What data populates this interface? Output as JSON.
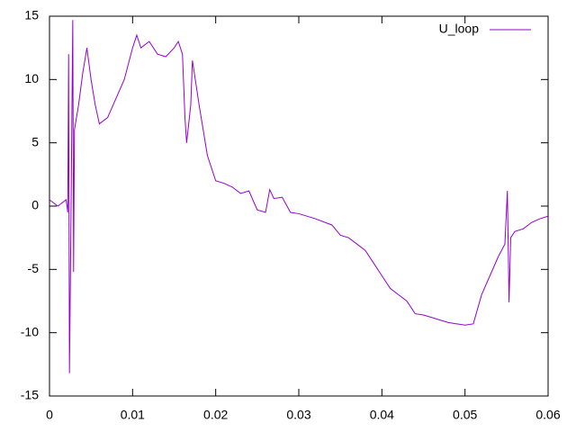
{
  "chart_data": {
    "type": "line",
    "x": [
      0,
      0.001,
      0.002,
      0.0022,
      0.0023,
      0.0024,
      0.0026,
      0.0028,
      0.0029,
      0.003,
      0.0035,
      0.004,
      0.0045,
      0.005,
      0.0055,
      0.006,
      0.007,
      0.008,
      0.009,
      0.01,
      0.0105,
      0.011,
      0.012,
      0.013,
      0.014,
      0.015,
      0.0155,
      0.016,
      0.0163,
      0.0165,
      0.017,
      0.0172,
      0.018,
      0.019,
      0.02,
      0.021,
      0.022,
      0.023,
      0.024,
      0.025,
      0.026,
      0.0265,
      0.027,
      0.028,
      0.029,
      0.03,
      0.032,
      0.034,
      0.035,
      0.036,
      0.037,
      0.038,
      0.039,
      0.04,
      0.041,
      0.042,
      0.043,
      0.044,
      0.045,
      0.046,
      0.047,
      0.048,
      0.049,
      0.05,
      0.051,
      0.052,
      0.053,
      0.054,
      0.0548,
      0.0551,
      0.0553,
      0.0555,
      0.056,
      0.057,
      0.058,
      0.059,
      0.06
    ],
    "series": [
      {
        "name": "U_loop",
        "color": "#9400d3",
        "values": [
          0.5,
          0,
          0.5,
          -0.5,
          12,
          -13.2,
          0,
          14.7,
          -5.2,
          6,
          8,
          10.5,
          12.5,
          10,
          8,
          6.5,
          7,
          8.5,
          10,
          12.5,
          13.5,
          12.5,
          13,
          12,
          11.8,
          12.5,
          13,
          12,
          7,
          5,
          8,
          11.5,
          8,
          4,
          2,
          1.8,
          1.5,
          1,
          1.2,
          -0.3,
          -0.5,
          1.3,
          0.6,
          0.7,
          -0.5,
          -0.6,
          -1,
          -1.5,
          -2.3,
          -2.5,
          -3,
          -3.5,
          -4.5,
          -5.5,
          -6.5,
          -7,
          -7.5,
          -8.5,
          -8.6,
          -8.8,
          -9,
          -9.2,
          -9.3,
          -9.4,
          -9.3,
          -7,
          -5.5,
          -4,
          -3,
          1.2,
          -7.6,
          -2.5,
          -2,
          -1.8,
          -1.3,
          -1,
          -0.8
        ]
      }
    ],
    "xlim": [
      0,
      0.06
    ],
    "ylim": [
      -15,
      15
    ],
    "xticks": [
      0,
      0.01,
      0.02,
      0.03,
      0.04,
      0.05,
      0.06
    ],
    "yticks": [
      -15,
      -10,
      -5,
      0,
      5,
      10,
      15
    ],
    "legend": "top-right"
  }
}
